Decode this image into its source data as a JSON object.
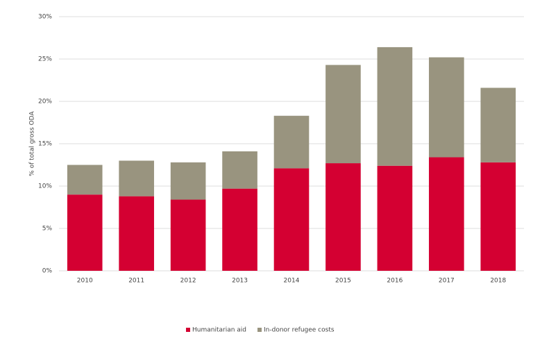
{
  "chart_data": {
    "type": "stacked-bar",
    "y_label": "% of total gross ODA",
    "categories": [
      "2010",
      "2011",
      "2012",
      "2013",
      "2014",
      "2015",
      "2016",
      "2017",
      "2018"
    ],
    "series": [
      {
        "name": "Humanitarian aid",
        "color": "#d40032",
        "values": [
          9.0,
          8.8,
          8.4,
          9.7,
          12.1,
          12.7,
          12.4,
          13.4,
          12.8
        ]
      },
      {
        "name": "In-donor refugee costs",
        "color": "#99947f",
        "values": [
          3.5,
          4.2,
          4.4,
          4.4,
          6.2,
          11.6,
          14.0,
          11.8,
          8.8
        ]
      }
    ],
    "ylim": [
      0,
      30
    ],
    "yticks": [
      {
        "value": 0,
        "label": "0%"
      },
      {
        "value": 5,
        "label": "5%"
      },
      {
        "value": 10,
        "label": "10%"
      },
      {
        "value": 15,
        "label": "15%"
      },
      {
        "value": 20,
        "label": "20%"
      },
      {
        "value": 25,
        "label": "25%"
      },
      {
        "value": 30,
        "label": "30%"
      }
    ],
    "grid": true,
    "legend": "bottom"
  }
}
